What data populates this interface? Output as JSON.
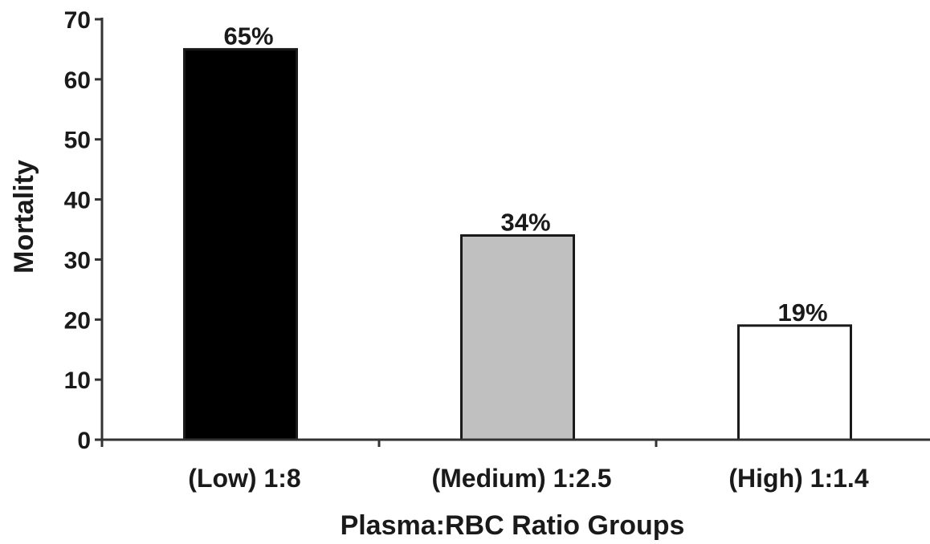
{
  "chart_data": {
    "type": "bar",
    "categories": [
      "(Low) 1:8",
      "(Medium) 1:2.5",
      "(High) 1:1.4"
    ],
    "values": [
      65,
      34,
      19
    ],
    "data_labels": [
      "65%",
      "34%",
      "19%"
    ],
    "bar_colors": [
      "#000000",
      "#c0c0c0",
      "#ffffff"
    ],
    "title": "",
    "xlabel": "Plasma:RBC Ratio Groups",
    "ylabel": "Mortality",
    "ylim": [
      0,
      70
    ],
    "yticks": [
      0,
      10,
      20,
      30,
      40,
      50,
      60,
      70
    ],
    "grid": false,
    "legend": "none"
  }
}
